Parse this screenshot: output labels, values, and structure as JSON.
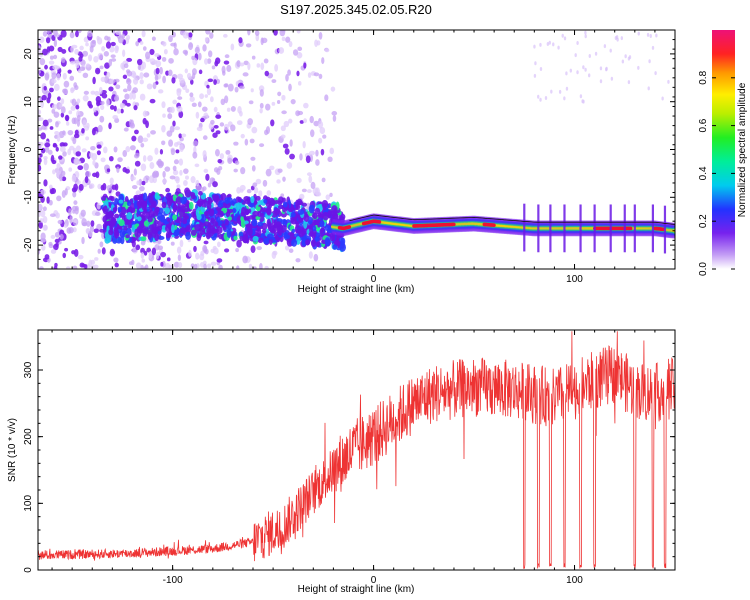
{
  "title": "S197.2025.345.02.05.R20",
  "chart_data": [
    {
      "type": "heatmap",
      "xlabel": "Height of straight line (km)",
      "ylabel": "Frequency (Hz)",
      "xlim": [
        -167,
        150
      ],
      "ylim": [
        -25,
        25
      ],
      "xticks": [
        -100,
        0,
        100
      ],
      "yticks": [
        -20,
        -10,
        0,
        10,
        20
      ],
      "colorbar": {
        "label": "Normalized spectral amplitude",
        "ticks": [
          0.0,
          0.2,
          0.4,
          0.6,
          0.8
        ],
        "range": [
          0,
          1
        ]
      },
      "ridge": {
        "description_points_x": [
          -120,
          -90,
          -60,
          -30,
          -15,
          0,
          20,
          50,
          80,
          110,
          140,
          150
        ],
        "frequency_hz": [
          -14.5,
          -13.5,
          -14.5,
          -15.5,
          -16.5,
          -15,
          -16,
          -15.5,
          -16.5,
          -16.5,
          -16.5,
          -17
        ]
      }
    },
    {
      "type": "line",
      "xlabel": "Height of straight line (km)",
      "ylabel": "SNR (10 * v/v)",
      "xlim": [
        -167,
        150
      ],
      "ylim": [
        0,
        360
      ],
      "xticks": [
        -100,
        0,
        100
      ],
      "yticks": [
        0,
        100,
        200,
        300
      ],
      "color": "#ee3333",
      "envelope": {
        "x": [
          -167,
          -120,
          -80,
          -60,
          -45,
          -35,
          -20,
          -10,
          0,
          10,
          20,
          30,
          50,
          70,
          90,
          100,
          110,
          120,
          130,
          140,
          150
        ],
        "y": [
          22,
          25,
          32,
          42,
          65,
          100,
          150,
          180,
          200,
          225,
          250,
          265,
          275,
          270,
          258,
          270,
          285,
          295,
          270,
          265,
          275
        ]
      },
      "dropouts_x": [
        75,
        82,
        88,
        95,
        103,
        110,
        130,
        139,
        145
      ]
    }
  ]
}
